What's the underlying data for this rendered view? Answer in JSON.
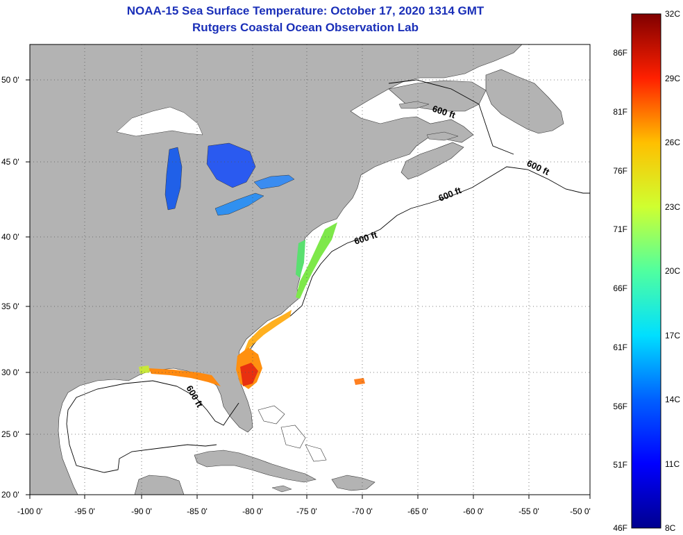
{
  "header": {
    "title": "NOAA-15 Sea Surface Temperature:  October 17, 2020 1314 GMT",
    "subtitle": "Rutgers Coastal Ocean Observation Lab"
  },
  "map": {
    "lon_labels": [
      "-100 0'",
      "-95 0'",
      "-90 0'",
      "-85 0'",
      "-80 0'",
      "-75 0'",
      "-70 0'",
      "-65 0'",
      "-60 0'",
      "-55 0'",
      "-50 0'"
    ],
    "lat_labels": [
      "50 0'",
      "45 0'",
      "40 0'",
      "35 0'",
      "30 0'",
      "25 0'",
      "20 0'"
    ],
    "contour_labels": [
      "600 ft",
      "600 ft",
      "600 ft",
      "600 ft",
      "600 ft"
    ],
    "land_color": "#b3b3b3",
    "ocean_color": "#ffffff"
  },
  "colorbar": {
    "celsius_labels": [
      "32C",
      "29C",
      "26C",
      "23C",
      "20C",
      "17C",
      "14C",
      "11C",
      "8C"
    ],
    "fahrenheit_labels": [
      "86F",
      "81F",
      "76F",
      "71F",
      "66F",
      "61F",
      "56F",
      "51F",
      "46F"
    ]
  }
}
